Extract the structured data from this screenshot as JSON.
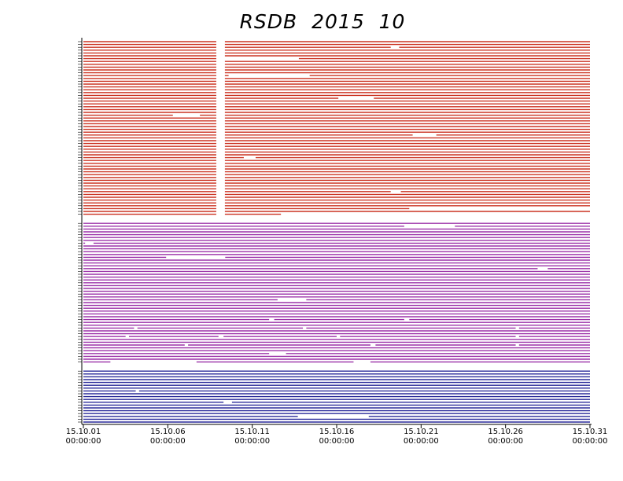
{
  "chart_data": {
    "type": "timeline",
    "title": "RSDB  2015  10",
    "xlim": [
      1,
      31
    ],
    "xticks": [
      {
        "value": 1,
        "label": "15.10.01",
        "time": "00:00:00"
      },
      {
        "value": 6,
        "label": "15.10.06",
        "time": "00:00:00"
      },
      {
        "value": 11,
        "label": "15.10.11",
        "time": "00:00:00"
      },
      {
        "value": 16,
        "label": "15.10.16",
        "time": "00:00:00"
      },
      {
        "value": 21,
        "label": "15.10.21",
        "time": "00:00:00"
      },
      {
        "value": 26,
        "label": "15.10.26",
        "time": "00:00:00"
      },
      {
        "value": 31,
        "label": "15.10.31",
        "time": "00:00:00"
      }
    ],
    "groups": [
      {
        "color": "#cc3322",
        "rows": [
          [
            [
              1,
              8.87
            ],
            [
              9.38,
              31
            ]
          ],
          [
            [
              1,
              8.87
            ],
            [
              9.38,
              31
            ]
          ],
          [
            [
              1,
              8.87
            ],
            [
              9.38,
              19.2
            ],
            [
              19.7,
              31
            ]
          ],
          [
            [
              1,
              8.87
            ],
            [
              9.38,
              31
            ]
          ],
          [
            [
              1,
              8.87
            ],
            [
              9.38,
              31
            ]
          ],
          [
            [
              1,
              8.87
            ],
            [
              9.38,
              31
            ]
          ],
          [
            [
              1,
              8.87
            ],
            [
              13.76,
              31
            ]
          ],
          [
            [
              1,
              8.87
            ],
            [
              9.38,
              31
            ]
          ],
          [
            [
              1,
              8.87
            ],
            [
              9.38,
              31
            ]
          ],
          [
            [
              1,
              8.87
            ],
            [
              9.38,
              31
            ]
          ],
          [
            [
              1,
              8.87
            ],
            [
              9.38,
              31
            ]
          ],
          [
            [
              1,
              8.87
            ],
            [
              9.38,
              31
            ]
          ],
          [
            [
              1,
              8.87
            ],
            [
              9.38,
              9.6
            ],
            [
              14.4,
              31
            ]
          ],
          [
            [
              1,
              8.87
            ],
            [
              9.38,
              31
            ]
          ],
          [
            [
              1,
              8.87
            ],
            [
              9.38,
              31
            ]
          ],
          [
            [
              1,
              8.87
            ],
            [
              9.38,
              31
            ]
          ],
          [
            [
              1,
              8.87
            ],
            [
              9.38,
              31
            ]
          ],
          [
            [
              1,
              8.87
            ],
            [
              9.38,
              31
            ]
          ],
          [
            [
              1,
              8.87
            ],
            [
              9.38,
              31
            ]
          ],
          [
            [
              1,
              8.87
            ],
            [
              9.38,
              31
            ]
          ],
          [
            [
              1,
              8.87
            ],
            [
              9.38,
              16.1
            ],
            [
              18.2,
              31
            ]
          ],
          [
            [
              1,
              8.87
            ],
            [
              9.38,
              31
            ]
          ],
          [
            [
              1,
              8.87
            ],
            [
              9.38,
              31
            ]
          ],
          [
            [
              1,
              8.87
            ],
            [
              9.38,
              31
            ]
          ],
          [
            [
              1,
              8.87
            ],
            [
              9.38,
              31
            ]
          ],
          [
            [
              1,
              8.87
            ],
            [
              9.38,
              31
            ]
          ],
          [
            [
              1,
              6.3
            ],
            [
              7.9,
              8.87
            ],
            [
              9.38,
              31
            ]
          ],
          [
            [
              1,
              8.87
            ],
            [
              9.38,
              31
            ]
          ],
          [
            [
              1,
              8.87
            ],
            [
              9.38,
              31
            ]
          ],
          [
            [
              1,
              8.87
            ],
            [
              9.38,
              31
            ]
          ],
          [
            [
              1,
              8.87
            ],
            [
              9.38,
              31
            ]
          ],
          [
            [
              1,
              8.87
            ],
            [
              9.38,
              31
            ]
          ],
          [
            [
              1,
              8.87
            ],
            [
              9.38,
              31
            ]
          ],
          [
            [
              1,
              8.87
            ],
            [
              9.38,
              20.5
            ],
            [
              21.9,
              31
            ]
          ],
          [
            [
              1,
              8.87
            ],
            [
              9.38,
              31
            ]
          ],
          [
            [
              1,
              8.87
            ],
            [
              9.38,
              31
            ]
          ],
          [
            [
              1,
              8.87
            ],
            [
              9.38,
              31
            ]
          ],
          [
            [
              1,
              8.87
            ],
            [
              9.38,
              31
            ]
          ],
          [
            [
              1,
              8.87
            ],
            [
              9.38,
              31
            ]
          ],
          [
            [
              1,
              8.87
            ],
            [
              9.38,
              31
            ]
          ],
          [
            [
              1,
              8.87
            ],
            [
              9.38,
              31
            ]
          ],
          [
            [
              1,
              8.87
            ],
            [
              9.38,
              10.5
            ],
            [
              11.2,
              31
            ]
          ],
          [
            [
              1,
              8.87
            ],
            [
              9.38,
              31
            ]
          ],
          [
            [
              1,
              8.87
            ],
            [
              9.38,
              31
            ]
          ],
          [
            [
              1,
              8.87
            ],
            [
              9.38,
              31
            ]
          ],
          [
            [
              1,
              8.87
            ],
            [
              9.38,
              31
            ]
          ],
          [
            [
              1,
              8.87
            ],
            [
              9.38,
              31
            ]
          ],
          [
            [
              1,
              8.87
            ],
            [
              9.38,
              31
            ]
          ],
          [
            [
              1,
              8.87
            ],
            [
              9.38,
              31
            ]
          ],
          [
            [
              1,
              8.87
            ],
            [
              9.38,
              31
            ]
          ],
          [
            [
              1,
              8.87
            ],
            [
              9.38,
              31
            ]
          ],
          [
            [
              1,
              8.87
            ],
            [
              9.38,
              31
            ]
          ],
          [
            [
              1,
              8.87
            ],
            [
              9.38,
              31
            ]
          ],
          [
            [
              1,
              8.87
            ],
            [
              9.38,
              19.2
            ],
            [
              19.8,
              31
            ]
          ],
          [
            [
              1,
              8.87
            ],
            [
              9.38,
              31
            ]
          ],
          [
            [
              1,
              8.87
            ],
            [
              9.38,
              31
            ]
          ],
          [
            [
              1,
              8.87
            ],
            [
              9.38,
              31
            ]
          ],
          [
            [
              1,
              8.87
            ],
            [
              9.38,
              31
            ]
          ],
          [
            [
              1,
              8.87
            ],
            [
              9.38,
              31
            ]
          ],
          [
            [
              1,
              8.87
            ],
            [
              9.38,
              20.3
            ]
          ],
          [
            [
              1,
              8.87
            ],
            [
              9.38,
              31
            ]
          ],
          [
            [
              1,
              8.87
            ],
            [
              9.38,
              12.7
            ]
          ]
        ]
      },
      {
        "color": "#9b30a8",
        "rows": [
          [
            [
              1,
              31
            ]
          ],
          [
            [
              1,
              20
            ],
            [
              23,
              31
            ]
          ],
          [
            [
              1,
              31
            ]
          ],
          [
            [
              1,
              31
            ]
          ],
          [
            [
              1,
              31
            ]
          ],
          [
            [
              1,
              31
            ]
          ],
          [
            [
              1,
              31
            ]
          ],
          [
            [
              1,
              1.1
            ],
            [
              1.6,
              31
            ]
          ],
          [
            [
              1,
              31
            ]
          ],
          [
            [
              1,
              31
            ]
          ],
          [
            [
              1,
              31
            ]
          ],
          [
            [
              1,
              31
            ]
          ],
          [
            [
              1,
              5.9
            ],
            [
              9.4,
              31
            ]
          ],
          [
            [
              1,
              31
            ]
          ],
          [
            [
              1,
              31
            ]
          ],
          [
            [
              1,
              31
            ]
          ],
          [
            [
              1,
              27.9
            ],
            [
              28.5,
              31
            ]
          ],
          [
            [
              1,
              31
            ]
          ],
          [
            [
              1,
              31
            ]
          ],
          [
            [
              1,
              31
            ]
          ],
          [
            [
              1,
              31
            ]
          ],
          [
            [
              1,
              31
            ]
          ],
          [
            [
              1,
              31
            ]
          ],
          [
            [
              1,
              31
            ]
          ],
          [
            [
              1,
              31
            ]
          ],
          [
            [
              1,
              31
            ]
          ],
          [
            [
              1,
              31
            ]
          ],
          [
            [
              1,
              12.5
            ],
            [
              14.2,
              31
            ]
          ],
          [
            [
              1,
              31
            ]
          ],
          [
            [
              1,
              31
            ]
          ],
          [
            [
              1,
              31
            ]
          ],
          [
            [
              1,
              31
            ]
          ],
          [
            [
              1,
              31
            ]
          ],
          [
            [
              1,
              31
            ]
          ],
          [
            [
              1,
              12
            ],
            [
              12.3,
              20
            ],
            [
              20.3,
              31
            ]
          ],
          [
            [
              1,
              31
            ]
          ],
          [
            [
              1,
              31
            ]
          ],
          [
            [
              1,
              4
            ],
            [
              4.2,
              14
            ],
            [
              14.2,
              26.6
            ],
            [
              26.8,
              31
            ]
          ],
          [
            [
              1,
              31
            ]
          ],
          [
            [
              1,
              31
            ]
          ],
          [
            [
              1,
              3.5
            ],
            [
              3.7,
              9
            ],
            [
              9.3,
              16
            ],
            [
              16.2,
              26.6
            ],
            [
              26.8,
              31
            ]
          ],
          [
            [
              1,
              31
            ]
          ],
          [
            [
              1,
              31
            ]
          ],
          [
            [
              1,
              7
            ],
            [
              7.2,
              18
            ],
            [
              18.3,
              26.6
            ],
            [
              26.8,
              31
            ]
          ],
          [
            [
              1,
              31
            ]
          ],
          [
            [
              1,
              31
            ]
          ],
          [
            [
              1,
              12
            ],
            [
              13,
              31
            ]
          ],
          [
            [
              1,
              31
            ]
          ],
          [
            [
              1,
              31
            ]
          ],
          [
            [
              1,
              2.6
            ],
            [
              7.7,
              17
            ],
            [
              18,
              31
            ]
          ]
        ]
      },
      {
        "color": "#2a2a9a",
        "rows": [
          [
            [
              1,
              31
            ]
          ],
          [
            [
              1,
              31
            ]
          ],
          [
            [
              1,
              31
            ]
          ],
          [
            [
              1,
              31
            ]
          ],
          [
            [
              1,
              31
            ]
          ],
          [
            [
              1,
              31
            ]
          ],
          [
            [
              1,
              31
            ]
          ],
          [
            [
              1,
              4.1
            ],
            [
              4.3,
              31
            ]
          ],
          [
            [
              1,
              31
            ]
          ],
          [
            [
              1,
              31
            ]
          ],
          [
            [
              1,
              31
            ]
          ],
          [
            [
              1,
              9.3
            ],
            [
              9.8,
              31
            ]
          ],
          [
            [
              1,
              31
            ]
          ],
          [
            [
              1,
              31
            ]
          ],
          [
            [
              1,
              31
            ]
          ],
          [
            [
              1,
              31
            ]
          ],
          [
            [
              1,
              13.7
            ],
            [
              17.9,
              31
            ]
          ],
          [
            [
              1,
              31
            ]
          ],
          [
            [
              1,
              31
            ]
          ]
        ]
      }
    ]
  }
}
